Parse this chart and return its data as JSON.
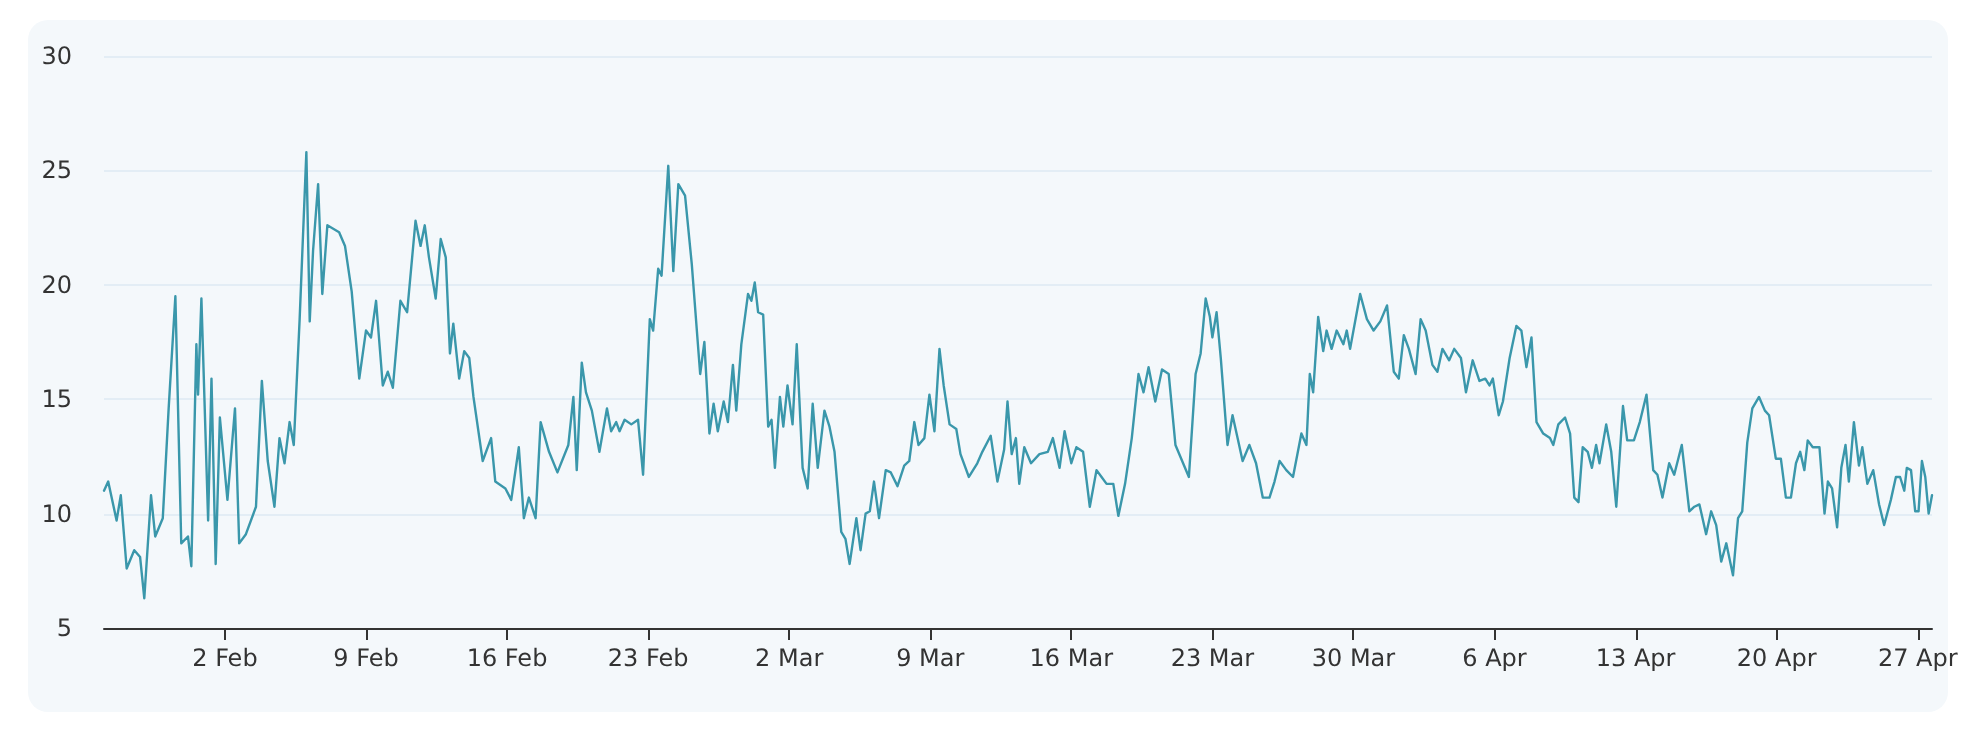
{
  "chart_data": {
    "type": "line",
    "x": [
      "--01-27T00:00",
      "--01-27T05:00",
      "--01-27T15:00",
      "--01-27T20:00",
      "--01-28T03:00",
      "--01-28T12:00",
      "--01-28T19:00",
      "--01-29T00:00",
      "--01-29T08:00",
      "--01-29T13:00",
      "--01-29T22:00",
      "--01-30T05:00",
      "--01-30T13:00",
      "--01-30T20:00",
      "--01-31T04:00",
      "--01-31T08:00",
      "--01-31T14:00",
      "--01-31T16:00",
      "--01-31T20:00",
      "--02-01T04:00",
      "--02-01T08:00",
      "--02-01T13:00",
      "--02-01T18:00",
      "--02-02T03:00",
      "--02-02T12:00",
      "--02-02T17:00",
      "--02-03T01:00",
      "--02-03T13:00",
      "--02-03T20:00",
      "--02-04T03:00",
      "--02-04T11:00",
      "--02-04T17:00",
      "--02-04T23:00",
      "--02-05T05:00",
      "--02-05T10:00",
      "--02-05T17:00",
      "--02-06T01:00",
      "--02-06T05:00",
      "--02-06T09:00",
      "--02-06T15:00",
      "--02-06T20:00",
      "--02-07T02:00",
      "--02-07T16:00",
      "--02-07T23:00",
      "--02-08T07:00",
      "--02-08T16:00",
      "--02-09T00:00",
      "--02-09T06:00",
      "--02-09T12:00",
      "--02-09T20:00",
      "--02-10T02:00",
      "--02-10T08:00",
      "--02-10T17:00",
      "--02-11T01:00",
      "--02-11T11:00",
      "--02-11T17:00",
      "--02-11T22:00",
      "--02-12T03:00",
      "--02-12T11:00",
      "--02-12T17:00",
      "--02-12T23:00",
      "--02-13T04:00",
      "--02-13T08:00",
      "--02-13T15:00",
      "--02-13T21:00",
      "--02-14T03:00",
      "--02-14T08:00",
      "--02-14T19:00",
      "--02-15T05:00",
      "--02-15T10:00",
      "--02-15T22:00",
      "--02-16T05:00",
      "--02-16T14:00",
      "--02-16T20:00",
      "--02-17T02:00",
      "--02-17T10:00",
      "--02-17T16:00",
      "--02-18T02:00",
      "--02-18T12:00",
      "--02-19T01:00",
      "--02-19T07:00",
      "--02-19T11:00",
      "--02-19T17:00",
      "--02-19T22:00",
      "--02-20T05:00",
      "--02-20T14:00",
      "--02-20T23:00",
      "--02-21T04:00",
      "--02-21T10:00",
      "--02-21T14:00",
      "--02-21T20:00",
      "--02-22T04:00",
      "--02-22T12:00",
      "--02-22T18:00",
      "--02-23T02:00",
      "--02-23T06:00",
      "--02-23T12:00",
      "--02-23T16:00",
      "--02-24T00:00",
      "--02-24T06:00",
      "--02-24T12:00",
      "--02-24T20:00",
      "--02-25T04:00",
      "--02-25T14:00",
      "--02-25T19:00",
      "--02-26T01:00",
      "--02-26T06:00",
      "--02-26T11:00",
      "--02-26T18:00",
      "--02-26T23:00",
      "--02-27T05:00",
      "--02-27T09:00",
      "--02-27T15:00",
      "--02-27T23:00",
      "--02-28T03:00",
      "--02-28T07:00",
      "--02-28T11:00",
      "--02-28T17:00",
      "--02-28T23:00",
      "--03-01T03:00",
      "--03-01T07:00",
      "--03-01T13:00",
      "--03-01T17:00",
      "--03-01T22:00",
      "--03-02T04:00",
      "--03-02T09:00",
      "--03-02T16:00",
      "--03-02T22:00",
      "--03-03T04:00",
      "--03-03T10:00",
      "--03-03T18:00",
      "--03-04T00:00",
      "--03-04T06:00",
      "--03-04T14:00",
      "--03-04T19:00",
      "--03-05T00:00",
      "--03-05T08:00",
      "--03-05T13:00",
      "--03-05T19:00",
      "--03-06T00:00",
      "--03-06T05:00",
      "--03-06T11:00",
      "--03-06T19:00",
      "--03-07T01:00",
      "--03-07T09:00",
      "--03-07T17:00",
      "--03-07T23:00",
      "--03-08T05:00",
      "--03-08T10:00",
      "--03-08T17:00",
      "--03-08T23:00",
      "--03-09T05:00",
      "--03-09T11:00",
      "--03-09T16:00",
      "--03-09T23:00",
      "--03-10T07:00",
      "--03-10T12:00",
      "--03-10T22:00",
      "--03-11T08:00",
      "--03-11T14:00",
      "--03-12T00:00",
      "--03-12T08:00",
      "--03-12T16:00",
      "--03-12T20:00",
      "--03-13T01:00",
      "--03-13T06:00",
      "--03-13T10:00",
      "--03-13T16:00",
      "--03-14T00:00",
      "--03-14T10:00",
      "--03-14T20:00",
      "--03-15T02:00",
      "--03-15T10:00",
      "--03-15T16:00",
      "--03-16T00:00",
      "--03-16T06:00",
      "--03-16T14:00",
      "--03-16T22:00",
      "--03-17T06:00",
      "--03-17T12:00",
      "--03-17T18:00",
      "--03-18T02:00",
      "--03-18T08:00",
      "--03-18T16:00",
      "--03-19T00:00",
      "--03-19T08:00",
      "--03-19T14:00",
      "--03-19T20:00",
      "--03-20T04:00",
      "--03-20T12:00",
      "--03-20T20:00",
      "--03-21T04:00",
      "--03-21T12:00",
      "--03-21T20:00",
      "--03-22T04:00",
      "--03-22T10:00",
      "--03-22T16:00",
      "--03-22T21:00",
      "--03-23T00:00",
      "--03-23T05:00",
      "--03-23T10:00",
      "--03-23T18:00",
      "--03-24T00:00",
      "--03-24T06:00",
      "--03-24T12:00",
      "--03-24T20:00",
      "--03-25T04:00",
      "--03-25T12:00",
      "--03-25T20:00",
      "--03-26T02:00",
      "--03-26T08:00",
      "--03-26T16:00",
      "--03-27T00:00",
      "--03-27T10:00",
      "--03-27T16:00",
      "--03-27T20:00",
      "--03-28T00:00",
      "--03-28T06:00",
      "--03-28T12:00",
      "--03-28T16:00",
      "--03-28T22:00",
      "--03-29T04:00",
      "--03-29T12:00",
      "--03-29T16:00",
      "--03-29T20:00",
      "--03-30T04:00",
      "--03-30T08:00",
      "--03-30T16:00",
      "--03-31T00:00",
      "--03-31T08:00",
      "--03-31T16:00",
      "--04-01T00:00",
      "--04-01T06:00",
      "--04-01T12:00",
      "--04-01T18:00",
      "--04-02T02:00",
      "--04-02T08:00",
      "--04-02T14:00",
      "--04-02T22:00",
      "--04-03T04:00",
      "--04-03T10:00",
      "--04-03T18:00",
      "--04-04T00:00",
      "--04-04T08:00",
      "--04-04T14:00",
      "--04-04T22:00",
      "--04-05T06:00",
      "--04-05T13:00",
      "--04-05T18:00",
      "--04-05T22:00",
      "--04-06T05:00",
      "--04-06T10:00",
      "--04-06T18:00",
      "--04-07T02:00",
      "--04-07T08:00",
      "--04-07T14:00",
      "--04-07T20:00",
      "--04-08T02:00",
      "--04-08T10:00",
      "--04-08T18:00",
      "--04-08T22:00",
      "--04-09T04:00",
      "--04-09T12:00",
      "--04-09T18:00",
      "--04-09T23:00",
      "--04-10T04:00",
      "--04-10T09:00",
      "--04-10T15:00",
      "--04-10T20:00",
      "--04-11T01:00",
      "--04-11T05:00",
      "--04-11T13:00",
      "--04-11T19:00",
      "--04-12T01:00",
      "--04-12T09:00",
      "--04-12T14:00",
      "--04-12T22:00",
      "--04-13T05:00",
      "--04-13T13:00",
      "--04-13T21:00",
      "--04-14T02:00",
      "--04-14T08:00",
      "--04-14T16:00",
      "--04-14T22:00",
      "--04-15T07:00",
      "--04-15T16:00",
      "--04-15T22:00",
      "--04-16T04:00",
      "--04-16T12:00",
      "--04-16T18:00",
      "--04-17T00:00",
      "--04-17T06:00",
      "--04-17T12:00",
      "--04-17T20:00",
      "--04-18T02:00",
      "--04-18T07:00",
      "--04-18T13:00",
      "--04-18T19:00",
      "--04-19T03:00",
      "--04-19T10:00",
      "--04-19T15:00",
      "--04-19T23:00",
      "--04-20T05:00",
      "--04-20T11:00",
      "--04-20T17:00",
      "--04-20T23:00",
      "--04-21T04:00",
      "--04-21T09:00",
      "--04-21T13:00",
      "--04-21T19:00",
      "--04-22T03:00",
      "--04-22T09:00",
      "--04-22T13:00",
      "--04-22T18:00",
      "--04-23T00:00",
      "--04-23T05:00",
      "--04-23T10:00",
      "--04-23T14:00",
      "--04-23T20:00",
      "--04-24T02:00",
      "--04-24T06:00",
      "--04-24T12:00",
      "--04-24T19:00",
      "--04-25T02:00",
      "--04-25T08:00",
      "--04-25T16:00",
      "--04-25T22:00",
      "--04-26T03:00",
      "--04-26T08:00",
      "--04-26T11:00",
      "--04-26T16:00",
      "--04-26T21:00",
      "--04-27T01:00",
      "--04-27T05:00",
      "--04-27T09:00",
      "--04-27T13:00",
      "--04-27T17:00"
    ],
    "series": [
      {
        "color": "#3a97ab",
        "values": [
          11.0,
          11.4,
          9.7,
          10.8,
          7.6,
          8.4,
          8.1,
          6.3,
          10.8,
          9.0,
          9.8,
          14.6,
          19.5,
          8.7,
          9.0,
          7.7,
          17.4,
          15.2,
          19.4,
          9.7,
          15.9,
          7.8,
          14.2,
          10.6,
          14.6,
          8.7,
          9.1,
          10.3,
          15.8,
          12.3,
          10.3,
          13.3,
          12.2,
          14.0,
          13.0,
          18.5,
          25.8,
          18.4,
          21.5,
          24.4,
          19.6,
          22.6,
          22.3,
          21.7,
          19.7,
          15.9,
          18.0,
          17.7,
          19.3,
          15.6,
          16.2,
          15.5,
          19.3,
          18.8,
          22.8,
          21.7,
          22.6,
          21.2,
          19.4,
          22.0,
          21.2,
          17.0,
          18.3,
          15.9,
          17.1,
          16.8,
          15.1,
          12.3,
          13.3,
          11.4,
          11.1,
          10.6,
          12.9,
          9.8,
          10.7,
          9.8,
          14.0,
          12.7,
          11.8,
          13.0,
          15.1,
          11.9,
          16.6,
          15.3,
          14.5,
          12.7,
          14.6,
          13.6,
          14.0,
          13.6,
          14.1,
          13.9,
          14.1,
          11.7,
          18.5,
          18.0,
          20.7,
          20.4,
          25.2,
          20.6,
          24.4,
          23.9,
          20.9,
          16.1,
          17.5,
          13.5,
          14.8,
          13.6,
          14.9,
          14.0,
          16.5,
          14.5,
          17.4,
          19.6,
          19.3,
          20.1,
          18.8,
          18.7,
          13.8,
          14.1,
          12.0,
          15.1,
          13.8,
          15.6,
          13.9,
          17.4,
          12.0,
          11.1,
          14.8,
          12.0,
          14.5,
          13.8,
          12.7,
          9.2,
          8.9,
          7.8,
          9.8,
          8.4,
          10.0,
          10.1,
          11.4,
          9.8,
          11.9,
          11.8,
          11.2,
          12.1,
          12.3,
          14.0,
          13.0,
          13.3,
          15.2,
          13.6,
          17.2,
          15.6,
          13.9,
          13.7,
          12.6,
          11.6,
          12.2,
          12.7,
          13.4,
          11.4,
          12.8,
          14.9,
          12.6,
          13.3,
          11.3,
          12.9,
          12.2,
          12.6,
          12.7,
          13.3,
          12.0,
          13.6,
          12.2,
          12.9,
          12.7,
          10.3,
          11.9,
          11.6,
          11.3,
          11.3,
          9.9,
          11.3,
          13.3,
          16.1,
          15.3,
          16.4,
          14.9,
          16.3,
          16.1,
          13.0,
          12.3,
          11.6,
          16.1,
          17.0,
          19.4,
          18.6,
          17.7,
          18.8,
          16.8,
          13.0,
          14.3,
          13.3,
          12.3,
          13.0,
          12.2,
          10.7,
          10.7,
          11.4,
          12.3,
          11.9,
          11.6,
          13.5,
          13.0,
          16.1,
          15.3,
          18.6,
          17.1,
          18.0,
          17.2,
          18.0,
          17.4,
          18.0,
          17.2,
          18.8,
          19.6,
          18.5,
          18.0,
          18.4,
          19.1,
          16.2,
          15.9,
          17.8,
          17.2,
          16.1,
          18.5,
          18.0,
          16.5,
          16.2,
          17.2,
          16.7,
          17.2,
          16.8,
          15.3,
          16.7,
          15.8,
          15.9,
          15.6,
          15.9,
          14.3,
          14.9,
          16.8,
          18.2,
          18.0,
          16.4,
          17.7,
          14.0,
          13.5,
          13.3,
          13.0,
          13.9,
          14.2,
          13.5,
          10.7,
          10.5,
          12.9,
          12.7,
          12.0,
          13.0,
          12.2,
          13.9,
          12.7,
          10.3,
          14.7,
          13.2,
          13.2,
          14.0,
          15.2,
          11.9,
          11.7,
          10.7,
          12.2,
          11.7,
          13.0,
          10.1,
          10.3,
          10.4,
          9.1,
          10.1,
          9.5,
          7.9,
          8.7,
          7.3,
          9.8,
          10.1,
          13.1,
          14.6,
          15.1,
          14.5,
          14.3,
          12.4,
          12.4,
          10.7,
          10.7,
          12.2,
          12.7,
          11.9,
          13.2,
          12.9,
          12.9,
          10.0,
          11.4,
          11.1,
          9.4,
          12.0,
          13.0,
          11.4,
          14.0,
          12.1,
          12.9,
          11.3,
          11.9,
          10.4,
          9.5,
          10.6,
          11.6,
          11.6,
          11.0,
          12.0,
          11.9,
          10.1,
          10.1,
          12.3,
          11.6,
          10.0,
          10.8
        ]
      }
    ],
    "xlim": [
      "--01-27T00:00",
      "--04-27T17:00"
    ],
    "xticks": [
      {
        "value": "--02-02",
        "label": "2 Feb"
      },
      {
        "value": "--02-09",
        "label": "9 Feb"
      },
      {
        "value": "--02-16",
        "label": "16 Feb"
      },
      {
        "value": "--02-23",
        "label": "23 Feb"
      },
      {
        "value": "--03-02",
        "label": "2 Mar"
      },
      {
        "value": "--03-09",
        "label": "9 Mar"
      },
      {
        "value": "--03-16",
        "label": "16 Mar"
      },
      {
        "value": "--03-23",
        "label": "23 Mar"
      },
      {
        "value": "--03-30",
        "label": "30 Mar"
      },
      {
        "value": "--04-06",
        "label": "6 Apr"
      },
      {
        "value": "--04-13",
        "label": "13 Apr"
      },
      {
        "value": "--04-20",
        "label": "20 Apr"
      },
      {
        "value": "--04-27",
        "label": "27 Apr"
      }
    ],
    "ylim": [
      5,
      30
    ],
    "yticks": [
      5,
      10,
      15,
      20,
      25,
      30
    ],
    "grid": "y",
    "marker": "none",
    "line_style": "solid"
  }
}
